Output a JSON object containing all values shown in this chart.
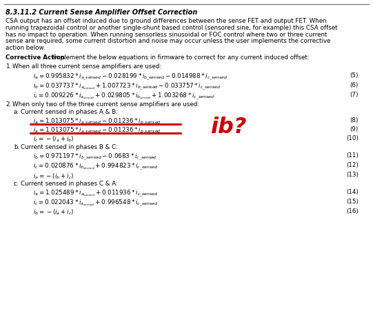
{
  "title": "8.3.11.2 Current Sense Amplifier Offset Correction",
  "bg_color": "#ffffff",
  "text_color": "#000000",
  "red_color": "#cc0000",
  "body_text_lines": [
    "CSA output has an offset induced due to ground differences between the sense FET and output FET. When",
    "running trapezoidal control or another single-shunt based control (sensored sine, for example) this CSA offset",
    "has no impact to operation. When running sensorless sinusoidal or FOC control where two or three current",
    "sense are required, some current distortion and noise may occur unless the user implements the corrective",
    "action below."
  ],
  "corrective_bold": "Corrective Action",
  "corrective_rest": ": Implement the below equations in firmware to correct for any current induced offset:",
  "ib_annotation": "ib?"
}
